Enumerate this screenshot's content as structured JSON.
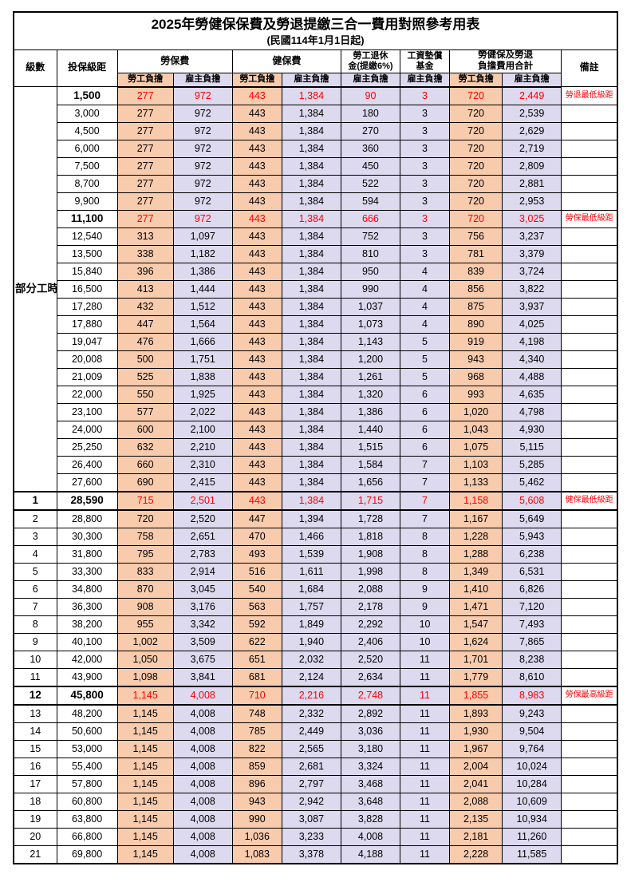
{
  "title": "2025年勞健保保費及勞退提繳三合一費用對照參考用表",
  "subtitle": "(民國114年1月1日起)",
  "headers": {
    "level": "級數",
    "bracket": "投保級距",
    "labor_insurance": "勞保費",
    "health_insurance": "健保費",
    "pension_line1": "勞工退休",
    "pension_line2": "金(提繳6%)",
    "wage_fund_line1": "工資墊償",
    "wage_fund_line2": "基金",
    "total_line1": "勞健保及勞退",
    "total_line2": "負擔費用合計",
    "remarks": "備註",
    "employee": "勞工負擔",
    "employer": "雇主負擔"
  },
  "colors": {
    "employee_bg": "#F8CBAD",
    "employer_bg": "#DDD9EE",
    "highlight_text": "#FF0000"
  },
  "rows": [
    {
      "level": "部分工時",
      "rowspan": 23,
      "bracket": "1,500",
      "cells": [
        "277",
        "972",
        "443",
        "1,384",
        "90",
        "3",
        "720",
        "2,449"
      ],
      "remark": "勞退最低級距",
      "highlight": true
    },
    {
      "bracket": "3,000",
      "cells": [
        "277",
        "972",
        "443",
        "1,384",
        "180",
        "3",
        "720",
        "2,539"
      ]
    },
    {
      "bracket": "4,500",
      "cells": [
        "277",
        "972",
        "443",
        "1,384",
        "270",
        "3",
        "720",
        "2,629"
      ]
    },
    {
      "bracket": "6,000",
      "cells": [
        "277",
        "972",
        "443",
        "1,384",
        "360",
        "3",
        "720",
        "2,719"
      ]
    },
    {
      "bracket": "7,500",
      "cells": [
        "277",
        "972",
        "443",
        "1,384",
        "450",
        "3",
        "720",
        "2,809"
      ]
    },
    {
      "bracket": "8,700",
      "cells": [
        "277",
        "972",
        "443",
        "1,384",
        "522",
        "3",
        "720",
        "2,881"
      ]
    },
    {
      "bracket": "9,900",
      "cells": [
        "277",
        "972",
        "443",
        "1,384",
        "594",
        "3",
        "720",
        "2,953"
      ]
    },
    {
      "bracket": "11,100",
      "cells": [
        "277",
        "972",
        "443",
        "1,384",
        "666",
        "3",
        "720",
        "3,025"
      ],
      "remark": "勞保最低級距",
      "highlight": true
    },
    {
      "bracket": "12,540",
      "cells": [
        "313",
        "1,097",
        "443",
        "1,384",
        "752",
        "3",
        "756",
        "3,237"
      ]
    },
    {
      "bracket": "13,500",
      "cells": [
        "338",
        "1,182",
        "443",
        "1,384",
        "810",
        "3",
        "781",
        "3,379"
      ]
    },
    {
      "bracket": "15,840",
      "cells": [
        "396",
        "1,386",
        "443",
        "1,384",
        "950",
        "4",
        "839",
        "3,724"
      ]
    },
    {
      "bracket": "16,500",
      "cells": [
        "413",
        "1,444",
        "443",
        "1,384",
        "990",
        "4",
        "856",
        "3,822"
      ]
    },
    {
      "bracket": "17,280",
      "cells": [
        "432",
        "1,512",
        "443",
        "1,384",
        "1,037",
        "4",
        "875",
        "3,937"
      ]
    },
    {
      "bracket": "17,880",
      "cells": [
        "447",
        "1,564",
        "443",
        "1,384",
        "1,073",
        "4",
        "890",
        "4,025"
      ]
    },
    {
      "bracket": "19,047",
      "cells": [
        "476",
        "1,666",
        "443",
        "1,384",
        "1,143",
        "5",
        "919",
        "4,198"
      ]
    },
    {
      "bracket": "20,008",
      "cells": [
        "500",
        "1,751",
        "443",
        "1,384",
        "1,200",
        "5",
        "943",
        "4,340"
      ]
    },
    {
      "bracket": "21,009",
      "cells": [
        "525",
        "1,838",
        "443",
        "1,384",
        "1,261",
        "5",
        "968",
        "4,488"
      ]
    },
    {
      "bracket": "22,000",
      "cells": [
        "550",
        "1,925",
        "443",
        "1,384",
        "1,320",
        "6",
        "993",
        "4,635"
      ]
    },
    {
      "bracket": "23,100",
      "cells": [
        "577",
        "2,022",
        "443",
        "1,384",
        "1,386",
        "6",
        "1,020",
        "4,798"
      ]
    },
    {
      "bracket": "24,000",
      "cells": [
        "600",
        "2,100",
        "443",
        "1,384",
        "1,440",
        "6",
        "1,043",
        "4,930"
      ]
    },
    {
      "bracket": "25,250",
      "cells": [
        "632",
        "2,210",
        "443",
        "1,384",
        "1,515",
        "6",
        "1,075",
        "5,115"
      ]
    },
    {
      "bracket": "26,400",
      "cells": [
        "660",
        "2,310",
        "443",
        "1,384",
        "1,584",
        "7",
        "1,103",
        "5,285"
      ]
    },
    {
      "bracket": "27,600",
      "cells": [
        "690",
        "2,415",
        "443",
        "1,384",
        "1,656",
        "7",
        "1,133",
        "5,462"
      ]
    },
    {
      "level": "1",
      "bracket": "28,590",
      "cells": [
        "715",
        "2,501",
        "443",
        "1,384",
        "1,715",
        "7",
        "1,158",
        "5,608"
      ],
      "remark": "健保最低級距",
      "highlight": true,
      "thick": true
    },
    {
      "level": "2",
      "bracket": "28,800",
      "cells": [
        "720",
        "2,520",
        "447",
        "1,394",
        "1,728",
        "7",
        "1,167",
        "5,649"
      ]
    },
    {
      "level": "3",
      "bracket": "30,300",
      "cells": [
        "758",
        "2,651",
        "470",
        "1,466",
        "1,818",
        "8",
        "1,228",
        "5,943"
      ]
    },
    {
      "level": "4",
      "bracket": "31,800",
      "cells": [
        "795",
        "2,783",
        "493",
        "1,539",
        "1,908",
        "8",
        "1,288",
        "6,238"
      ]
    },
    {
      "level": "5",
      "bracket": "33,300",
      "cells": [
        "833",
        "2,914",
        "516",
        "1,611",
        "1,998",
        "8",
        "1,349",
        "6,531"
      ]
    },
    {
      "level": "6",
      "bracket": "34,800",
      "cells": [
        "870",
        "3,045",
        "540",
        "1,684",
        "2,088",
        "9",
        "1,410",
        "6,826"
      ]
    },
    {
      "level": "7",
      "bracket": "36,300",
      "cells": [
        "908",
        "3,176",
        "563",
        "1,757",
        "2,178",
        "9",
        "1,471",
        "7,120"
      ]
    },
    {
      "level": "8",
      "bracket": "38,200",
      "cells": [
        "955",
        "3,342",
        "592",
        "1,849",
        "2,292",
        "10",
        "1,547",
        "7,493"
      ]
    },
    {
      "level": "9",
      "bracket": "40,100",
      "cells": [
        "1,002",
        "3,509",
        "622",
        "1,940",
        "2,406",
        "10",
        "1,624",
        "7,865"
      ]
    },
    {
      "level": "10",
      "bracket": "42,000",
      "cells": [
        "1,050",
        "3,675",
        "651",
        "2,032",
        "2,520",
        "11",
        "1,701",
        "8,238"
      ]
    },
    {
      "level": "11",
      "bracket": "43,900",
      "cells": [
        "1,098",
        "3,841",
        "681",
        "2,124",
        "2,634",
        "11",
        "1,779",
        "8,610"
      ]
    },
    {
      "level": "12",
      "bracket": "45,800",
      "cells": [
        "1,145",
        "4,008",
        "710",
        "2,216",
        "2,748",
        "11",
        "1,855",
        "8,983"
      ],
      "remark": "勞保最高級距",
      "highlight": true,
      "thick": true
    },
    {
      "level": "13",
      "bracket": "48,200",
      "cells": [
        "1,145",
        "4,008",
        "748",
        "2,332",
        "2,892",
        "11",
        "1,893",
        "9,243"
      ]
    },
    {
      "level": "14",
      "bracket": "50,600",
      "cells": [
        "1,145",
        "4,008",
        "785",
        "2,449",
        "3,036",
        "11",
        "1,930",
        "9,504"
      ]
    },
    {
      "level": "15",
      "bracket": "53,000",
      "cells": [
        "1,145",
        "4,008",
        "822",
        "2,565",
        "3,180",
        "11",
        "1,967",
        "9,764"
      ]
    },
    {
      "level": "16",
      "bracket": "55,400",
      "cells": [
        "1,145",
        "4,008",
        "859",
        "2,681",
        "3,324",
        "11",
        "2,004",
        "10,024"
      ]
    },
    {
      "level": "17",
      "bracket": "57,800",
      "cells": [
        "1,145",
        "4,008",
        "896",
        "2,797",
        "3,468",
        "11",
        "2,041",
        "10,284"
      ]
    },
    {
      "level": "18",
      "bracket": "60,800",
      "cells": [
        "1,145",
        "4,008",
        "943",
        "2,942",
        "3,648",
        "11",
        "2,088",
        "10,609"
      ]
    },
    {
      "level": "19",
      "bracket": "63,800",
      "cells": [
        "1,145",
        "4,008",
        "990",
        "3,087",
        "3,828",
        "11",
        "2,135",
        "10,934"
      ]
    },
    {
      "level": "20",
      "bracket": "66,800",
      "cells": [
        "1,145",
        "4,008",
        "1,036",
        "3,233",
        "4,008",
        "11",
        "2,181",
        "11,260"
      ]
    },
    {
      "level": "21",
      "bracket": "69,800",
      "cells": [
        "1,145",
        "4,008",
        "1,083",
        "3,378",
        "4,188",
        "11",
        "2,228",
        "11,585"
      ]
    }
  ]
}
